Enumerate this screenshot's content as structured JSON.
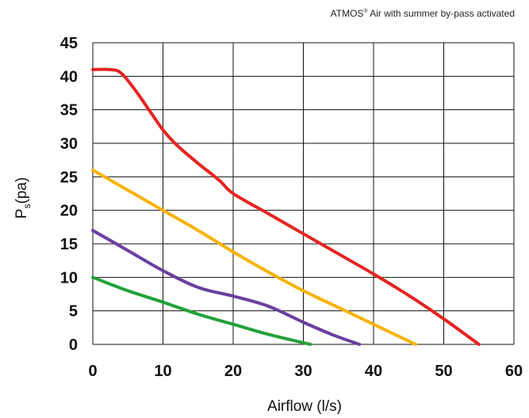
{
  "note": {
    "prefix": "ATMOS",
    "reg": "®",
    "suffix": " Air with summer by-pass activated"
  },
  "chart_data": {
    "type": "line",
    "title": "",
    "xlabel": "Airflow (l/s)",
    "ylabel": "Ps(pa)",
    "ylabel_main": "P",
    "ylabel_sub": "s",
    "ylabel_rest": "(pa)",
    "xlim": [
      0,
      60
    ],
    "ylim": [
      0,
      45
    ],
    "x_ticks": [
      0,
      10,
      20,
      30,
      40,
      50,
      60
    ],
    "y_ticks": [
      0,
      5,
      10,
      15,
      20,
      25,
      30,
      35,
      40,
      45
    ],
    "grid": true,
    "legend": "none",
    "series": [
      {
        "color": "#e52421",
        "points": [
          [
            0,
            41
          ],
          [
            2.5,
            41
          ],
          [
            4,
            40.5
          ],
          [
            6,
            38
          ],
          [
            8,
            35
          ],
          [
            10,
            32
          ],
          [
            12,
            29.7
          ],
          [
            15,
            27
          ],
          [
            18,
            24.5
          ],
          [
            20,
            22.5
          ],
          [
            25,
            19.5
          ],
          [
            30,
            16.5
          ],
          [
            35,
            13.5
          ],
          [
            40,
            10.5
          ],
          [
            45,
            7.3
          ],
          [
            50,
            3.8
          ],
          [
            55,
            0
          ]
        ]
      },
      {
        "color": "#f8b200",
        "points": [
          [
            0,
            26
          ],
          [
            5,
            23
          ],
          [
            10,
            20
          ],
          [
            15,
            17
          ],
          [
            20,
            13.8
          ],
          [
            25,
            10.8
          ],
          [
            30,
            8
          ],
          [
            35,
            5.5
          ],
          [
            40,
            3
          ],
          [
            46,
            0
          ]
        ]
      },
      {
        "color": "#6a3ea1",
        "points": [
          [
            0,
            17
          ],
          [
            5,
            14
          ],
          [
            10,
            11
          ],
          [
            15,
            8.5
          ],
          [
            20,
            7.2
          ],
          [
            25,
            5.7
          ],
          [
            30,
            3.3
          ],
          [
            34,
            1.5
          ],
          [
            38,
            0
          ]
        ]
      },
      {
        "color": "#22a139",
        "points": [
          [
            0,
            10
          ],
          [
            5,
            8
          ],
          [
            10,
            6.3
          ],
          [
            15,
            4.5
          ],
          [
            20,
            3
          ],
          [
            25,
            1.5
          ],
          [
            31,
            0
          ]
        ]
      }
    ]
  }
}
